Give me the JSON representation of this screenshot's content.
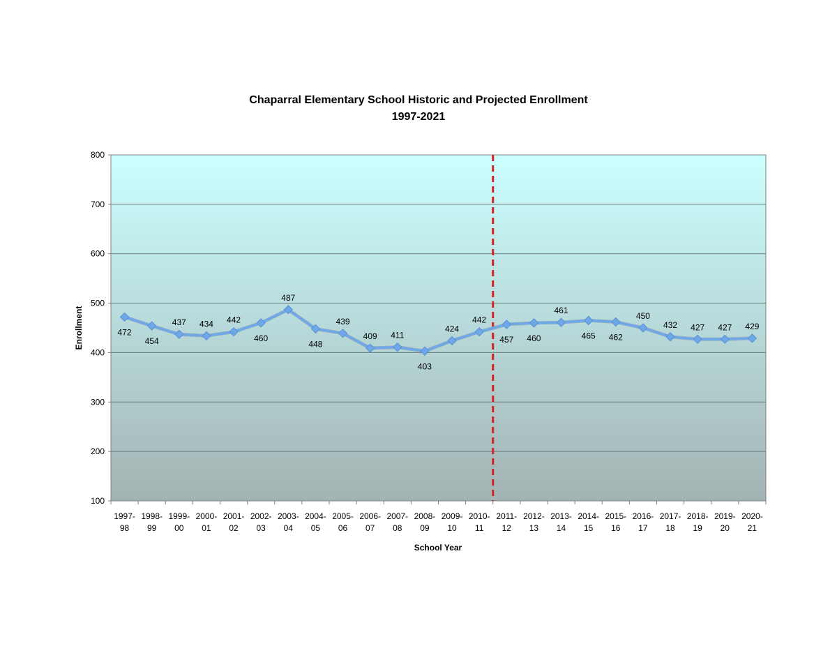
{
  "chart_data": {
    "type": "line",
    "title": "Chaparral Elementary School Historic and Projected Enrollment",
    "subtitle": "1997-2021",
    "xlabel": "School Year",
    "ylabel": "Enrollment",
    "ylim": [
      100,
      800
    ],
    "yticks": [
      100,
      200,
      300,
      400,
      500,
      600,
      700,
      800
    ],
    "grid": true,
    "legend": "none",
    "categories": [
      [
        "1997-",
        "98"
      ],
      [
        "1998-",
        "99"
      ],
      [
        "1999-",
        "00"
      ],
      [
        "2000-",
        "01"
      ],
      [
        "2001-",
        "02"
      ],
      [
        "2002-",
        "03"
      ],
      [
        "2003-",
        "04"
      ],
      [
        "2004-",
        "05"
      ],
      [
        "2005-",
        "06"
      ],
      [
        "2006-",
        "07"
      ],
      [
        "2007-",
        "08"
      ],
      [
        "2008-",
        "09"
      ],
      [
        "2009-",
        "10"
      ],
      [
        "2010-",
        "11"
      ],
      [
        "2011-",
        "12"
      ],
      [
        "2012-",
        "13"
      ],
      [
        "2013-",
        "14"
      ],
      [
        "2014-",
        "15"
      ],
      [
        "2015-",
        "16"
      ],
      [
        "2016-",
        "17"
      ],
      [
        "2017-",
        "18"
      ],
      [
        "2018-",
        "19"
      ],
      [
        "2019-",
        "20"
      ],
      [
        "2020-",
        "21"
      ]
    ],
    "series": [
      {
        "values": [
          472,
          454,
          437,
          434,
          442,
          460,
          487,
          448,
          439,
          409,
          411,
          403,
          424,
          442,
          457,
          460,
          461,
          465,
          462,
          450,
          432,
          427,
          427,
          429
        ],
        "color": "#6fa8e8"
      }
    ],
    "data_labels": [
      "472",
      "454",
      "437",
      "434",
      "442",
      "460",
      "487",
      "448",
      "439",
      "409",
      "411",
      "403",
      "424",
      "442",
      "457",
      "460",
      "461",
      "465",
      "462",
      "450",
      "432",
      "427",
      "427",
      "429"
    ],
    "label_positions": [
      "below",
      "below",
      "above",
      "above",
      "above",
      "below",
      "above",
      "below",
      "above",
      "above",
      "above",
      "below",
      "above",
      "above",
      "below",
      "below",
      "above",
      "below",
      "below",
      "above",
      "above",
      "above",
      "above",
      "above"
    ],
    "projection_divider_after_index": 13,
    "divider_color": "#d42020",
    "plot_gradient_top": "#ccffff",
    "plot_gradient_bottom": "#a3b3b3"
  }
}
